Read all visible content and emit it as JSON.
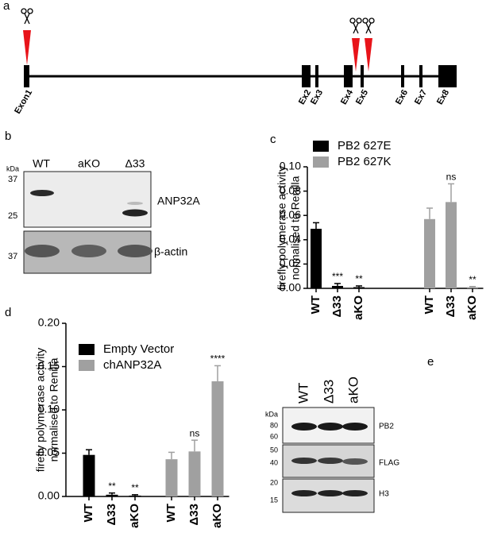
{
  "panel_a": {
    "label": "a",
    "exons": [
      "Exon1",
      "Ex2",
      "Ex3",
      "Ex4",
      "Ex5",
      "Ex6",
      "Ex7",
      "Ex8"
    ]
  },
  "panel_b": {
    "label": "b",
    "lanes": [
      "WT",
      "aKO",
      "Δ33"
    ],
    "kda": "kDa",
    "markers": [
      "37",
      "25",
      "37"
    ],
    "proteins": [
      "ANP32A",
      "β-actin"
    ]
  },
  "panel_e": {
    "label": "e",
    "lanes": [
      "WT",
      "Δ33",
      "aKO"
    ],
    "kda": "kDa",
    "markers": [
      "80",
      "60",
      "50",
      "40",
      "20",
      "15"
    ],
    "proteins": [
      "PB2",
      "FLAG",
      "H3"
    ]
  },
  "chart_data": [
    {
      "type": "bar",
      "panel_label": "c",
      "ylabel": [
        "firefly polymerase activity",
        "normalised to Renilla"
      ],
      "categories": [
        "WT",
        "Δ33",
        "aKO",
        "WT",
        "Δ33",
        "aKO"
      ],
      "series": [
        {
          "name": "PB2 627E",
          "color": "#000000",
          "values": [
            0.049,
            0.002,
            0.001,
            null,
            null,
            null
          ],
          "errors": [
            0.005,
            0.002,
            0.001,
            null,
            null,
            null
          ],
          "annotations": [
            null,
            "***",
            "**",
            null,
            null,
            null
          ]
        },
        {
          "name": "PB2 627K",
          "color": "#a0a0a0",
          "values": [
            null,
            null,
            null,
            0.057,
            0.071,
            0.001
          ],
          "errors": [
            null,
            null,
            null,
            0.009,
            0.015,
            0.0005
          ],
          "annotations": [
            null,
            null,
            null,
            null,
            "ns",
            "**"
          ]
        }
      ],
      "ylim": [
        0,
        0.1
      ],
      "yticks": [
        {
          "value": 0,
          "label": "0.00"
        },
        {
          "value": 0.02,
          "label": "0.02"
        },
        {
          "value": 0.04,
          "label": "0.04"
        },
        {
          "value": 0.06,
          "label": "0.06"
        },
        {
          "value": 0.08,
          "label": "0.08"
        },
        {
          "value": 0.1,
          "label": "0.10"
        }
      ]
    },
    {
      "type": "bar",
      "panel_label": "d",
      "ylabel": [
        "firefly polymerase activity",
        "normalised to Renilla"
      ],
      "categories": [
        "WT",
        "Δ33",
        "aKO",
        "WT",
        "Δ33",
        "aKO"
      ],
      "series": [
        {
          "name": "Empty Vector",
          "color": "#000000",
          "values": [
            0.048,
            0.002,
            0.001,
            null,
            null,
            null
          ],
          "errors": [
            0.006,
            0.002,
            0.001,
            null,
            null,
            null
          ],
          "annotations": [
            null,
            "**",
            "**",
            null,
            null,
            null
          ]
        },
        {
          "name": "chANP32A",
          "color": "#a0a0a0",
          "values": [
            null,
            null,
            null,
            0.043,
            0.052,
            0.133
          ],
          "errors": [
            null,
            null,
            null,
            0.008,
            0.013,
            0.018
          ],
          "annotations": [
            null,
            null,
            null,
            null,
            "ns",
            "****"
          ]
        }
      ],
      "ylim": [
        0,
        0.2
      ],
      "yticks": [
        {
          "value": 0,
          "label": "0.00"
        },
        {
          "value": 0.05,
          "label": "0.05"
        },
        {
          "value": 0.1,
          "label": "0.10"
        },
        {
          "value": 0.15,
          "label": "0.15"
        },
        {
          "value": 0.2,
          "label": "0.20"
        }
      ]
    }
  ]
}
